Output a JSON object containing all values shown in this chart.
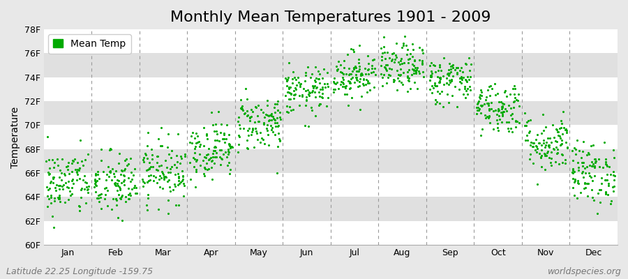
{
  "title": "Monthly Mean Temperatures 1901 - 2009",
  "ylabel": "Temperature",
  "xlabel": "",
  "bg_color": "#e8e8e8",
  "white_band": "#ffffff",
  "gray_band": "#e0e0e0",
  "dot_color": "#00aa00",
  "legend_label": "Mean Temp",
  "lat_lon_text": "Latitude 22.25 Longitude -159.75",
  "watermark": "worldspecies.org",
  "ylim": [
    60,
    78
  ],
  "yticks": [
    60,
    62,
    64,
    66,
    68,
    70,
    72,
    74,
    76,
    78
  ],
  "ytick_labels": [
    "60F",
    "62F",
    "64F",
    "66F",
    "68F",
    "70F",
    "72F",
    "74F",
    "76F",
    "78F"
  ],
  "months": [
    "Jan",
    "Feb",
    "Mar",
    "Apr",
    "May",
    "Jun",
    "Jul",
    "Aug",
    "Sep",
    "Oct",
    "Nov",
    "Dec"
  ],
  "month_means": [
    65.2,
    65.0,
    66.2,
    68.0,
    70.2,
    72.8,
    74.2,
    74.8,
    73.8,
    71.5,
    68.5,
    66.0
  ],
  "month_stds": [
    1.4,
    1.4,
    1.3,
    1.2,
    1.2,
    1.0,
    1.0,
    1.0,
    1.0,
    1.1,
    1.2,
    1.3
  ],
  "n_years": 109,
  "seed": 42,
  "title_fontsize": 16,
  "axis_fontsize": 10,
  "tick_fontsize": 9,
  "watermark_fontsize": 9,
  "lat_lon_fontsize": 9,
  "dot_size": 5
}
